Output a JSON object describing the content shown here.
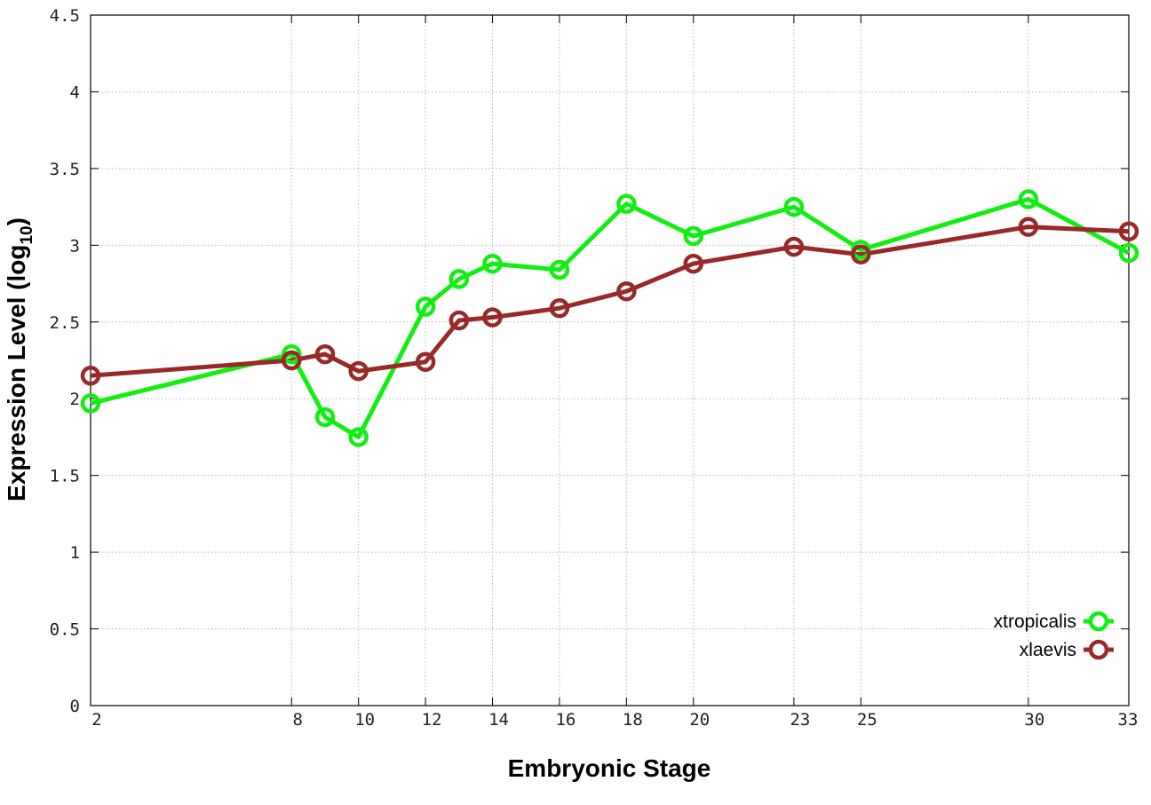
{
  "chart_data": {
    "type": "line",
    "title": "",
    "xlabel": "Embryonic Stage",
    "ylabel_main": "Expression Level (log",
    "ylabel_sub": "10",
    "ylabel_close": ")",
    "x": [
      2,
      8,
      9,
      10,
      12,
      13,
      14,
      16,
      18,
      20,
      23,
      25,
      30,
      33
    ],
    "x_ticks": [
      "2",
      "8",
      "10",
      "12",
      "14",
      "16",
      "18",
      "20",
      "23",
      "25",
      "30",
      "33"
    ],
    "y_ticks": [
      "0",
      "0.5",
      "1",
      "1.5",
      "2",
      "2.5",
      "3",
      "3.5",
      "4",
      "4.5"
    ],
    "xlim": [
      2,
      33
    ],
    "ylim": [
      0,
      4.5
    ],
    "grid": true,
    "legend_position": "bottom-right",
    "series": [
      {
        "name": "xtropicalis",
        "color": "#11ee11",
        "values": [
          1.97,
          2.29,
          1.88,
          1.75,
          2.6,
          2.78,
          2.88,
          2.84,
          3.27,
          3.06,
          3.25,
          2.97,
          3.3,
          2.95
        ]
      },
      {
        "name": "xlaevis",
        "color": "#992929",
        "values": [
          2.15,
          2.25,
          2.29,
          2.18,
          2.24,
          2.51,
          2.53,
          2.59,
          2.7,
          2.88,
          2.99,
          2.94,
          3.12,
          3.09
        ]
      }
    ]
  }
}
